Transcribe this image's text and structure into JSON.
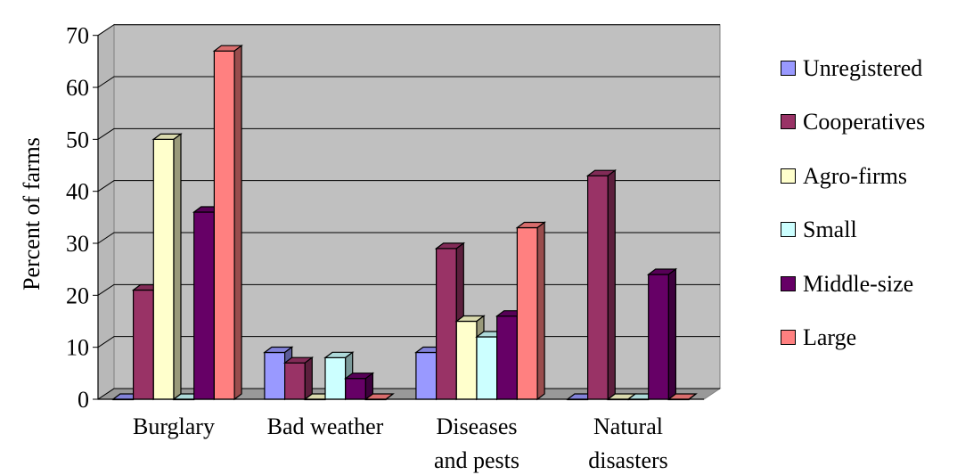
{
  "chart_data": {
    "type": "bar",
    "ylabel": "Percent of farms",
    "xlabel": "",
    "ylim": [
      0,
      70
    ],
    "yticks": [
      0,
      10,
      20,
      30,
      40,
      50,
      60,
      70
    ],
    "grid": true,
    "legend_position": "right",
    "categories": [
      [
        "Burglary"
      ],
      [
        "Bad weather"
      ],
      [
        "Diseases",
        "and pests"
      ],
      [
        "Natural",
        "disasters"
      ]
    ],
    "series": [
      {
        "name": "Unregistered",
        "color": "#9999ff",
        "values": [
          0,
          9,
          9,
          0
        ]
      },
      {
        "name": "Cooperatives",
        "color": "#993366",
        "values": [
          21,
          7,
          29,
          43
        ]
      },
      {
        "name": "Agro-firms",
        "color": "#ffffcc",
        "values": [
          50,
          0,
          15,
          0
        ]
      },
      {
        "name": "Small",
        "color": "#ccffff",
        "values": [
          0,
          8,
          12,
          0
        ]
      },
      {
        "name": "Middle-size",
        "color": "#660066",
        "values": [
          36,
          4,
          16,
          24
        ]
      },
      {
        "name": "Large",
        "color": "#ff8080",
        "values": [
          67,
          0,
          33,
          0
        ]
      }
    ]
  }
}
